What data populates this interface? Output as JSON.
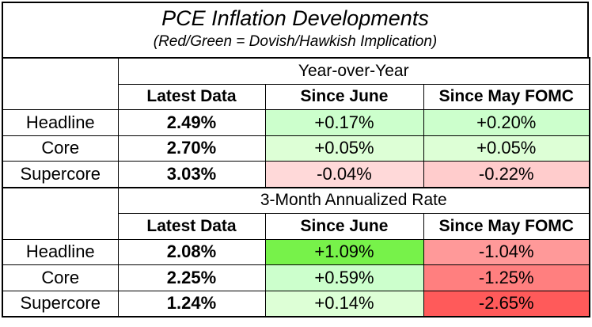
{
  "title": "PCE Inflation Developments",
  "subtitle": "(Red/Green = Dovish/Hawkish Implication)",
  "colors": {
    "light_green": "#ccffcc",
    "light_red": "#ffcccc",
    "bright_green": "#77f24a",
    "medium_red": "#ff9999",
    "strong_red": "#ff6666",
    "pale_green": "#ddffd6"
  },
  "sections": [
    {
      "heading": "Year-over-Year",
      "columns": [
        "Latest Data",
        "Since June",
        "Since May FOMC"
      ],
      "rows": [
        {
          "label": "Headline",
          "latest": "2.49%",
          "since_june": "+0.17%",
          "since_may": "+0.20%"
        },
        {
          "label": "Core",
          "latest": "2.70%",
          "since_june": "+0.05%",
          "since_may": "+0.05%"
        },
        {
          "label": "Supercore",
          "latest": "3.03%",
          "since_june": "-0.04%",
          "since_may": "-0.22%"
        }
      ]
    },
    {
      "heading": "3-Month Annualized Rate",
      "columns": [
        "Latest Data",
        "Since June",
        "Since May FOMC"
      ],
      "rows": [
        {
          "label": "Headline",
          "latest": "2.08%",
          "since_june": "+1.09%",
          "since_may": "-1.04%"
        },
        {
          "label": "Core",
          "latest": "2.25%",
          "since_june": "+0.59%",
          "since_may": "-1.25%"
        },
        {
          "label": "Supercore",
          "latest": "1.24%",
          "since_june": "+0.14%",
          "since_may": "-2.65%"
        }
      ]
    }
  ]
}
